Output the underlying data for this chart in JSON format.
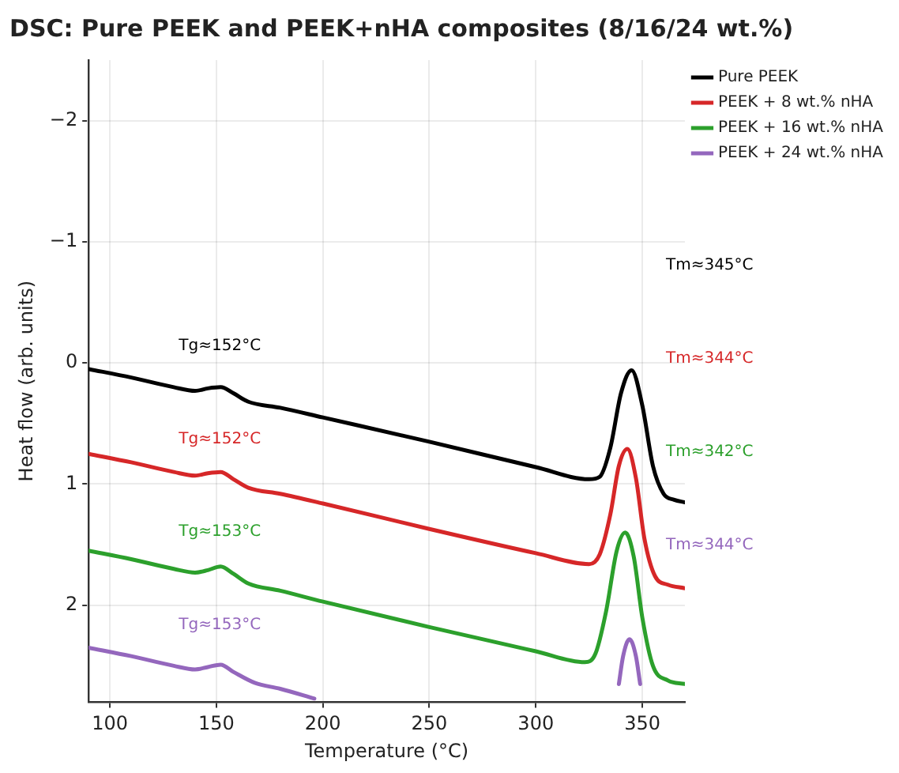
{
  "chart_data": {
    "type": "line",
    "title": "DSC: Pure PEEK and PEEK+nHA composites (8/16/24 wt.%)",
    "xlabel": "Temperature (°C)",
    "ylabel": "Heat flow (arb. units)",
    "xlim": [
      90,
      370
    ],
    "xticks": [
      100,
      150,
      200,
      250,
      300,
      350
    ],
    "ylim": [
      2.8,
      -2.5
    ],
    "yticks": [
      -2,
      -1,
      0,
      1,
      2
    ],
    "grid": true,
    "legend": "top right",
    "marker": "none",
    "line_style": "solid",
    "series": [
      {
        "name": "Pure PEEK",
        "color": "#000000",
        "x": [
          90,
          110,
          130,
          140,
          146,
          152,
          158,
          165,
          180,
          200,
          250,
          300,
          325,
          330,
          335,
          340,
          345,
          350,
          355,
          360,
          365,
          370
        ],
        "values": [
          0.05,
          0.12,
          0.2,
          0.23,
          0.21,
          0.2,
          0.25,
          0.32,
          0.37,
          0.45,
          0.65,
          0.86,
          0.96,
          0.94,
          0.7,
          0.25,
          0.06,
          0.35,
          0.85,
          1.08,
          1.13,
          1.15
        ]
      },
      {
        "name": "PEEK + 8 wt.% nHA",
        "color": "#d62728",
        "x": [
          90,
          110,
          130,
          140,
          146,
          152,
          158,
          165,
          180,
          200,
          250,
          300,
          325,
          330,
          335,
          339,
          343,
          347,
          351,
          356,
          362,
          370
        ],
        "values": [
          0.75,
          0.82,
          0.9,
          0.93,
          0.91,
          0.9,
          0.96,
          1.03,
          1.08,
          1.16,
          1.37,
          1.57,
          1.66,
          1.58,
          1.25,
          0.85,
          0.71,
          0.95,
          1.45,
          1.76,
          1.83,
          1.86
        ]
      },
      {
        "name": "PEEK + 16 wt.% nHA",
        "color": "#2ca02c",
        "x": [
          90,
          110,
          130,
          140,
          146,
          152,
          158,
          165,
          180,
          200,
          250,
          300,
          323,
          328,
          333,
          338,
          342,
          346,
          350,
          355,
          362,
          370
        ],
        "values": [
          1.55,
          1.62,
          1.7,
          1.73,
          1.71,
          1.68,
          1.74,
          1.82,
          1.88,
          1.97,
          2.18,
          2.38,
          2.47,
          2.4,
          2.05,
          1.55,
          1.4,
          1.6,
          2.1,
          2.5,
          2.62,
          2.65
        ]
      },
      {
        "name": "PEEK + 24 wt.% nHA",
        "color": "#9467bd",
        "x": [
          90,
          110,
          130,
          140,
          146,
          152,
          158,
          168,
          180,
          196,
          270,
          339,
          341,
          344,
          347,
          349
        ],
        "values": [
          2.35,
          2.42,
          2.5,
          2.53,
          2.51,
          2.49,
          2.55,
          2.64,
          2.69,
          2.77,
          null,
          2.65,
          2.42,
          2.28,
          2.42,
          2.65
        ]
      }
    ],
    "annotations": [
      "Tg≈152°C",
      "Tg≈152°C",
      "Tg≈153°C",
      "Tg≈153°C",
      "Tm≈345°C",
      "Tm≈344°C",
      "Tm≈342°C",
      "Tm≈344°C"
    ]
  }
}
